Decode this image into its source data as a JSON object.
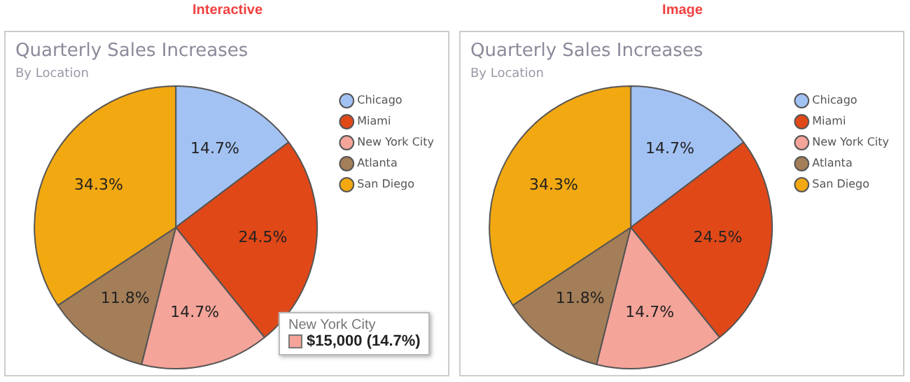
{
  "chart_data": [
    {
      "type": "pie",
      "title": "Quarterly Sales Increases",
      "subtitle": "By Location",
      "categories": [
        "Chicago",
        "Miami",
        "New York City",
        "Atlanta",
        "San Diego"
      ],
      "values": [
        14.7,
        24.5,
        14.7,
        11.8,
        34.3
      ],
      "colors": [
        "#a3c2f4",
        "#e04818",
        "#f5a49a",
        "#a47e58",
        "#f2a811"
      ],
      "value_labels": [
        "14.7%",
        "24.5%",
        "14.7%",
        "11.8%",
        "34.3%"
      ],
      "legend": "right",
      "annotations": [
        "Interactive",
        "New York City",
        "$15,000 (14.7%)"
      ]
    },
    {
      "type": "pie",
      "title": "Quarterly Sales Increases",
      "subtitle": "By Location",
      "categories": [
        "Chicago",
        "Miami",
        "New York City",
        "Atlanta",
        "San Diego"
      ],
      "values": [
        14.7,
        24.5,
        14.7,
        11.8,
        34.3
      ],
      "colors": [
        "#a3c2f4",
        "#e04818",
        "#f5a49a",
        "#a47e58",
        "#f2a811"
      ],
      "value_labels": [
        "14.7%",
        "24.5%",
        "14.7%",
        "11.8%",
        "34.3%"
      ],
      "legend": "right",
      "annotations": [
        "Image"
      ]
    }
  ]
}
